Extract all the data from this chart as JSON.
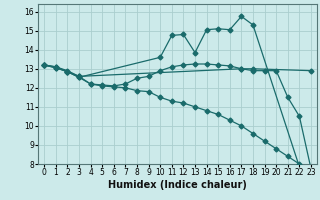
{
  "xlabel": "Humidex (Indice chaleur)",
  "bg_color": "#cceaea",
  "line_color": "#1a6b6b",
  "grid_color": "#aacece",
  "xlim": [
    -0.5,
    23.5
  ],
  "ylim": [
    8,
    16.4
  ],
  "yticks": [
    8,
    9,
    10,
    11,
    12,
    13,
    14,
    15,
    16
  ],
  "xticks": [
    0,
    1,
    2,
    3,
    4,
    5,
    6,
    7,
    8,
    9,
    10,
    11,
    12,
    13,
    14,
    15,
    16,
    17,
    18,
    19,
    20,
    21,
    22,
    23
  ],
  "lines": [
    {
      "x": [
        0,
        1,
        2,
        3,
        10,
        11,
        12,
        13,
        14,
        15,
        16,
        17,
        18,
        22,
        23
      ],
      "y": [
        13.2,
        13.05,
        12.85,
        12.55,
        13.6,
        14.75,
        14.8,
        13.85,
        15.05,
        15.1,
        15.05,
        15.75,
        15.3,
        7.85,
        7.75
      ]
    },
    {
      "x": [
        0,
        1,
        2,
        3,
        17,
        18,
        23
      ],
      "y": [
        13.2,
        13.1,
        12.9,
        12.6,
        13.0,
        13.0,
        12.9
      ]
    },
    {
      "x": [
        0,
        1,
        2,
        3,
        4,
        5,
        6,
        7,
        8,
        9,
        10,
        11,
        12,
        13,
        14,
        15,
        16,
        17,
        18,
        19,
        20,
        21,
        22,
        23
      ],
      "y": [
        13.2,
        13.05,
        12.85,
        12.55,
        12.2,
        12.1,
        12.05,
        12.0,
        11.85,
        11.8,
        11.5,
        11.3,
        11.2,
        11.0,
        10.8,
        10.6,
        10.3,
        10.0,
        9.6,
        9.2,
        8.8,
        8.4,
        8.0,
        7.75
      ]
    },
    {
      "x": [
        0,
        1,
        2,
        3,
        4,
        5,
        6,
        7,
        8,
        9,
        10,
        11,
        12,
        13,
        14,
        15,
        16,
        17,
        18,
        19,
        20,
        21,
        22,
        23
      ],
      "y": [
        13.2,
        13.1,
        12.85,
        12.6,
        12.2,
        12.15,
        12.1,
        12.2,
        12.5,
        12.6,
        12.9,
        13.1,
        13.2,
        13.25,
        13.25,
        13.2,
        13.15,
        13.0,
        12.9,
        12.9,
        12.9,
        11.5,
        10.5,
        7.75
      ]
    }
  ],
  "marker_size": 2.5,
  "marker_style": "D",
  "linewidth": 0.9,
  "xlabel_fontsize": 7,
  "tick_fontsize": 5.5
}
